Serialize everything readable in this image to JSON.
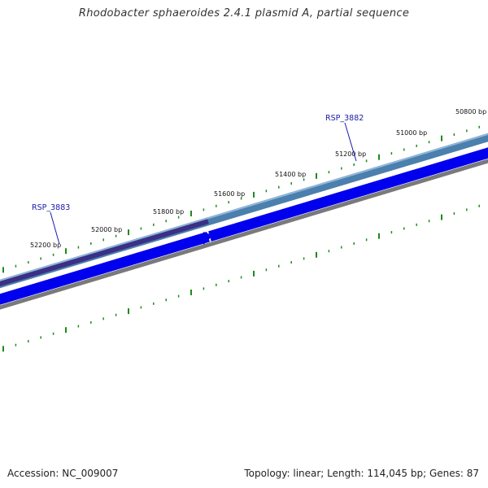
{
  "title": "Rhodobacter sphaeroides 2.4.1 plasmid A, partial sequence",
  "footer": {
    "accession": "Accession: NC_009007",
    "summary": "Topology: linear; Length: 114,045 bp; Genes: 87"
  },
  "scale": {
    "unit": "bp",
    "major_ticks": [
      {
        "position": 50800,
        "label": "50800 bp"
      },
      {
        "position": 51000,
        "label": "51000 bp"
      },
      {
        "position": 51200,
        "label": "51200 bp"
      },
      {
        "position": 51400,
        "label": "51400 bp"
      },
      {
        "position": 51600,
        "label": "51600 bp"
      },
      {
        "position": 51800,
        "label": "51800 bp"
      },
      {
        "position": 52000,
        "label": "52000 bp"
      },
      {
        "position": 52200,
        "label": "52200 bp"
      }
    ]
  },
  "genes": [
    {
      "id": "RSP_3882",
      "label": "RSP_3882",
      "color": "#1a1aa8"
    },
    {
      "id": "RSP_3883",
      "label": "RSP_3883",
      "color": "#1a1aa8"
    }
  ],
  "colors": {
    "tick": "#1e8a1e",
    "gene_track_1": "#4a7fae",
    "gene_track_1_dark": "#3b2f86",
    "cds_track": "#0000ee",
    "sequence_track": "#7a7a7a",
    "label": "#1a1aa8"
  }
}
